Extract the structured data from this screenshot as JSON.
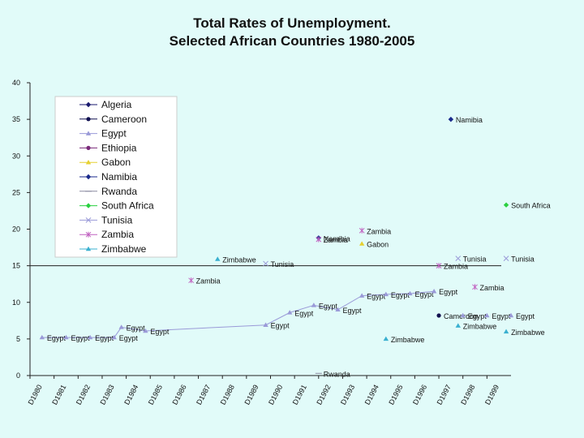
{
  "title_line1": "Total Rates of Unemployment.",
  "title_line2": "Selected African Countries 1980-2005",
  "chart_data": {
    "type": "scatter",
    "ylim": [
      0,
      40
    ],
    "yticks": [
      0,
      5,
      10,
      15,
      20,
      25,
      30,
      35,
      40
    ],
    "categories": [
      "D1980",
      "D1981",
      "D1982",
      "D1983",
      "D1984",
      "D1985",
      "D1986",
      "D1987",
      "D1988",
      "D1989",
      "D1990",
      "D1991",
      "D1992",
      "D1993",
      "D1994",
      "D1995",
      "D1996",
      "D1997",
      "D1998",
      "D1999"
    ],
    "legend": [
      "Algeria",
      "Cameroon",
      "Egypt",
      "Ethiopia",
      "Gabon",
      "Namibia",
      "Rwanda",
      "South Africa",
      "Tunisia",
      "Zambia",
      "Zimbabwe"
    ],
    "legend_position": "top-left",
    "colors": {
      "Algeria": "#1a1a6e",
      "Cameroon": "#101050",
      "Egypt": "#9a9ad8",
      "Ethiopia": "#7a2a7a",
      "Gabon": "#e6d030",
      "Namibia": "#1a2a8c",
      "Rwanda": "#8a8aa0",
      "South Africa": "#2ad040",
      "Tunisia": "#9a9ad8",
      "Zambia": "#c060c0",
      "Zimbabwe": "#3ab0d0"
    },
    "series": [
      {
        "name": "Egypt",
        "connected": true,
        "label": "Egypt",
        "points": [
          [
            0,
            5.2
          ],
          [
            1,
            5.2
          ],
          [
            2,
            5.2
          ],
          [
            3,
            5.2
          ],
          [
            3.3,
            6.6
          ],
          [
            4.3,
            6.1
          ],
          [
            9.3,
            6.9
          ],
          [
            10.3,
            8.6
          ],
          [
            11.3,
            9.6
          ],
          [
            12.3,
            9.0
          ],
          [
            13.3,
            10.9
          ],
          [
            14.3,
            11.1
          ],
          [
            15.3,
            11.2
          ],
          [
            16.3,
            11.5
          ]
        ]
      },
      {
        "name": "Cameroon",
        "label": "Cameroon",
        "points": [
          [
            16.5,
            8.2
          ]
        ]
      },
      {
        "name": "Egypt",
        "label": "Egypt",
        "points": [
          [
            17.5,
            8.2
          ],
          [
            18.5,
            8.2
          ],
          [
            19.5,
            8.2
          ]
        ]
      },
      {
        "name": "Namibia",
        "label": "Namibia",
        "points": [
          [
            17.0,
            35.0
          ]
        ]
      },
      {
        "name": "Namibia",
        "label": "Namibia",
        "points": [
          [
            11.5,
            18.8
          ]
        ]
      },
      {
        "name": "Zambia",
        "label": "Zambia",
        "points": [
          [
            11.5,
            18.6
          ]
        ]
      },
      {
        "name": "Zambia",
        "label": "Zambia",
        "points": [
          [
            13.3,
            19.8
          ]
        ]
      },
      {
        "name": "Gabon",
        "label": "Gabon",
        "points": [
          [
            13.3,
            18.0
          ]
        ]
      },
      {
        "name": "Zambia",
        "label": "Zambia",
        "points": [
          [
            6.2,
            13.0
          ]
        ]
      },
      {
        "name": "Zambia",
        "label": "Zambia",
        "points": [
          [
            16.5,
            15.0
          ]
        ]
      },
      {
        "name": "Zambia",
        "label": "Zambia",
        "points": [
          [
            18.0,
            12.1
          ]
        ]
      },
      {
        "name": "Zimbabwe",
        "label": "Zimbabwe",
        "points": [
          [
            7.3,
            15.9
          ]
        ]
      },
      {
        "name": "Zimbabwe",
        "label": "Zimbabwe",
        "points": [
          [
            14.3,
            5.0
          ]
        ]
      },
      {
        "name": "Zimbabwe",
        "label": "Zimbabwe",
        "points": [
          [
            17.3,
            6.8
          ]
        ]
      },
      {
        "name": "Zimbabwe",
        "label": "Zimbabwe",
        "points": [
          [
            19.3,
            6.0
          ]
        ]
      },
      {
        "name": "Tunisia",
        "label": "Tunisia",
        "points": [
          [
            9.3,
            15.3
          ]
        ]
      },
      {
        "name": "Tunisia",
        "label": "Tunisia",
        "points": [
          [
            17.3,
            16.0
          ]
        ]
      },
      {
        "name": "Tunisia",
        "label": "Tunisia",
        "points": [
          [
            19.3,
            16.0
          ]
        ]
      },
      {
        "name": "South Africa",
        "label": "South Africa",
        "points": [
          [
            19.3,
            23.3
          ]
        ]
      },
      {
        "name": "Rwanda",
        "label": "Rwanda",
        "points": [
          [
            11.5,
            0.3
          ]
        ]
      }
    ]
  }
}
